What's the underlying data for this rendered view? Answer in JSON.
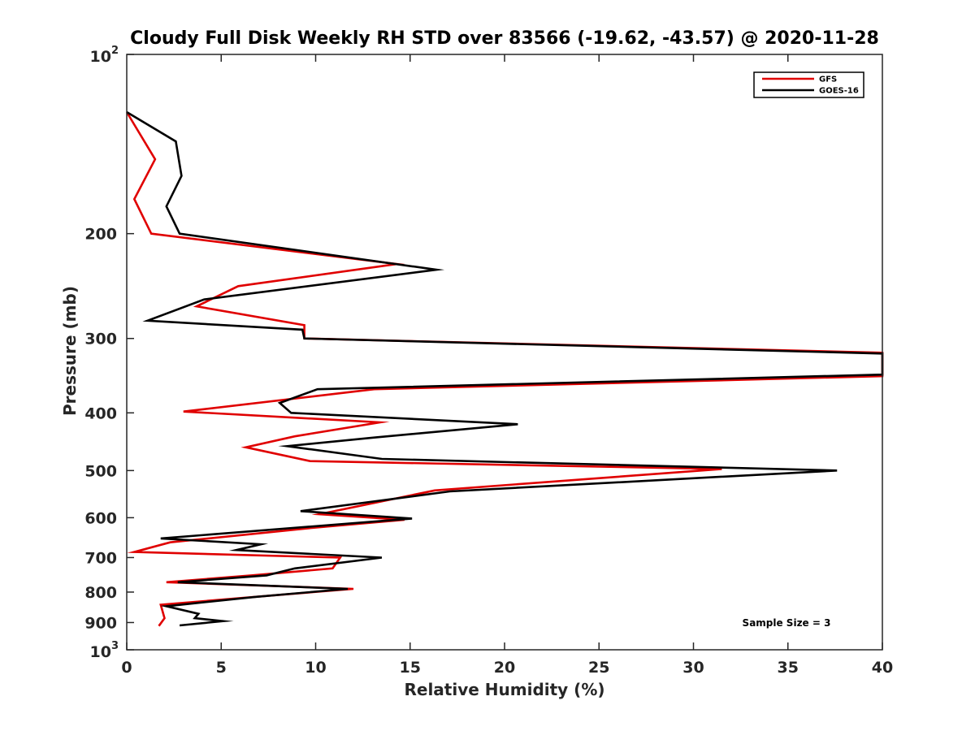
{
  "chart_data": {
    "type": "line",
    "title": "Cloudy Full Disk Weekly RH STD over 83566 (-19.62, -43.57) @ 2020-11-28",
    "xlabel": "Relative Humidity (%)",
    "ylabel": "Pressure (mb)",
    "xlim": [
      0,
      40
    ],
    "ylim": [
      100,
      1000
    ],
    "yscale": "log",
    "yreversed": true,
    "grid": false,
    "legend_position": "top-right",
    "x_ticks": [
      "0",
      "5",
      "10",
      "15",
      "20",
      "25",
      "30",
      "35",
      "40"
    ],
    "y_ticks": [
      {
        "value": 100,
        "base": "10",
        "exp": "2"
      },
      {
        "value": 200,
        "label": "200"
      },
      {
        "value": 300,
        "label": "300"
      },
      {
        "value": 400,
        "label": "400"
      },
      {
        "value": 500,
        "label": "500"
      },
      {
        "value": 600,
        "label": "600"
      },
      {
        "value": 700,
        "label": "700"
      },
      {
        "value": 800,
        "label": "800"
      },
      {
        "value": 900,
        "label": "900"
      },
      {
        "value": 1000,
        "base": "10",
        "exp": "3"
      }
    ],
    "annotation": "Sample Size = 3",
    "series": [
      {
        "name": "GFS",
        "color": "#e00000",
        "points": [
          [
            0.0,
            125
          ],
          [
            1.5,
            150
          ],
          [
            0.4,
            175
          ],
          [
            1.3,
            200
          ],
          [
            14.3,
            225
          ],
          [
            5.9,
            245
          ],
          [
            3.7,
            265
          ],
          [
            9.4,
            285
          ],
          [
            9.4,
            300
          ],
          [
            40,
            317
          ],
          [
            40,
            347
          ],
          [
            13.1,
            365
          ],
          [
            3.0,
            398
          ],
          [
            13.4,
            415
          ],
          [
            8.9,
            438
          ],
          [
            6.3,
            457
          ],
          [
            9.7,
            482
          ],
          [
            31.5,
            497
          ],
          [
            16.3,
            540
          ],
          [
            10.2,
            592
          ],
          [
            14.7,
            605
          ],
          [
            9.6,
            625
          ],
          [
            2.3,
            660
          ],
          [
            0.4,
            685
          ],
          [
            11.3,
            700
          ],
          [
            10.9,
            730
          ],
          [
            6.6,
            750
          ],
          [
            2.1,
            770
          ],
          [
            12.0,
            790
          ],
          [
            7.8,
            810
          ],
          [
            1.8,
            840
          ],
          [
            2.0,
            885
          ],
          [
            1.7,
            912
          ]
        ]
      },
      {
        "name": "GOES-16",
        "color": "#000000",
        "points": [
          [
            0.0,
            125
          ],
          [
            2.6,
            140
          ],
          [
            2.9,
            160
          ],
          [
            2.1,
            180
          ],
          [
            2.8,
            200
          ],
          [
            16.4,
            230
          ],
          [
            4.1,
            258
          ],
          [
            1.1,
            280
          ],
          [
            9.3,
            290
          ],
          [
            9.4,
            300
          ],
          [
            40,
            318
          ],
          [
            40,
            345
          ],
          [
            10.1,
            365
          ],
          [
            8.1,
            385
          ],
          [
            8.7,
            400
          ],
          [
            20.7,
            418
          ],
          [
            13.1,
            440
          ],
          [
            8.5,
            455
          ],
          [
            13.5,
            478
          ],
          [
            37.6,
            500
          ],
          [
            17.1,
            542
          ],
          [
            9.2,
            585
          ],
          [
            15.1,
            602
          ],
          [
            1.8,
            650
          ],
          [
            7.1,
            665
          ],
          [
            5.8,
            680
          ],
          [
            13.5,
            700
          ],
          [
            8.9,
            730
          ],
          [
            7.4,
            750
          ],
          [
            2.7,
            770
          ],
          [
            11.7,
            790
          ],
          [
            6.8,
            815
          ],
          [
            2.1,
            845
          ],
          [
            3.8,
            870
          ],
          [
            3.6,
            885
          ],
          [
            5.1,
            895
          ],
          [
            2.8,
            910
          ]
        ]
      }
    ]
  }
}
